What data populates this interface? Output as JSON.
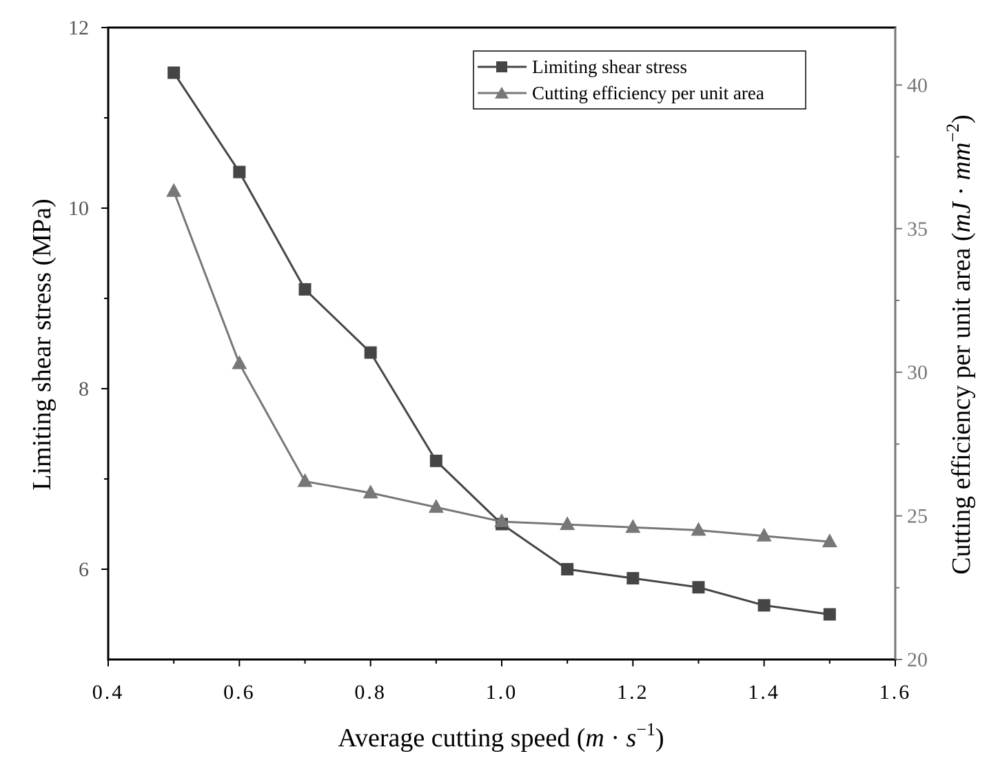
{
  "chart_data": {
    "type": "line",
    "xlabel": "Average cutting speed",
    "xlabel_unit": {
      "open": "(",
      "m": "m",
      "dot": "·",
      "s": "s",
      "exp": "−1",
      "close": ")"
    },
    "ylabel_left": "Limiting shear stress (MPa)",
    "ylabel_right": "Cutting efficiency per unit area",
    "ylabel_right_unit": {
      "open": "(",
      "mJ": "mJ",
      "dot": "·",
      "mm": "mm",
      "exp": "−2",
      "close": ")"
    },
    "xlim": [
      0.4,
      1.6
    ],
    "ylim_left": [
      5,
      12
    ],
    "ylim_right": [
      20,
      42
    ],
    "x_ticks": [
      "0.4",
      "0.6",
      "0.8",
      "1.0",
      "1.2",
      "1.4",
      "1.6"
    ],
    "y_left_ticks": [
      "6",
      "8",
      "10",
      "12"
    ],
    "y_right_ticks": [
      "20",
      "25",
      "30",
      "35",
      "40"
    ],
    "x": [
      0.5,
      0.6,
      0.7,
      0.8,
      0.9,
      1.0,
      1.1,
      1.2,
      1.3,
      1.4,
      1.5
    ],
    "series": [
      {
        "name": "Limiting shear stress",
        "axis": "left",
        "marker": "square",
        "color": "#454545",
        "values": [
          11.5,
          10.4,
          9.1,
          8.4,
          7.2,
          6.5,
          6.0,
          5.9,
          5.8,
          5.6,
          5.5
        ]
      },
      {
        "name": "Cutting efficiency per unit area",
        "axis": "right",
        "marker": "triangle",
        "color": "#777777",
        "values": [
          36.3,
          30.3,
          26.2,
          25.8,
          25.3,
          24.8,
          24.7,
          24.6,
          24.5,
          24.3,
          24.1
        ]
      }
    ],
    "legend_position": "top-right",
    "grid": false
  }
}
